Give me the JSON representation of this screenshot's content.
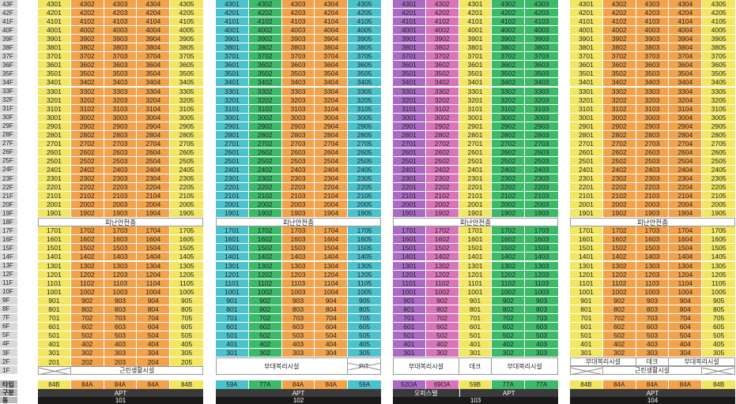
{
  "colors": {
    "yellow": "#f2e663",
    "orange": "#f2a24a",
    "green": "#3cba6a",
    "cyan": "#4cc3cc",
    "purple": "#a96bc4",
    "pink": "#d874b8"
  },
  "floors": [
    "43F",
    "42F",
    "41F",
    "40F",
    "39F",
    "38F",
    "37F",
    "36F",
    "35F",
    "34F",
    "33F",
    "32F",
    "31F",
    "30F",
    "29F",
    "28F",
    "27F",
    "26F",
    "25F",
    "24F",
    "23F",
    "22F",
    "21F",
    "20F",
    "19F",
    "18F",
    "17F",
    "16F",
    "15F",
    "14F",
    "13F",
    "12F",
    "11F",
    "10F",
    "9F",
    "8F",
    "7F",
    "6F",
    "5F",
    "4F",
    "3F",
    "2F",
    "1F"
  ],
  "footer_labels": {
    "type": "타입",
    "gubun": "구분",
    "dong": "동"
  },
  "buildings": [
    {
      "dong": "101",
      "gubun": "APT",
      "refuge": "피난안전층",
      "types": [
        "84B",
        "84A",
        "84A",
        "84A",
        "84B"
      ],
      "colors": [
        "yellow",
        "orange",
        "orange",
        "orange",
        "yellow"
      ],
      "units": [
        "01",
        "02",
        "03",
        "04",
        "05"
      ],
      "bottom": {
        "cells": [
          {
            "label": "",
            "x": true,
            "w": 1
          },
          {
            "label": "근린생활시설",
            "x": false,
            "w": 4
          }
        ]
      }
    },
    {
      "dong": "102",
      "gubun": "APT",
      "refuge": "피난안전층",
      "types": [
        "59A",
        "77A",
        "84A",
        "84A",
        "59A"
      ],
      "colors": [
        "cyan",
        "green",
        "orange",
        "orange",
        "cyan"
      ],
      "units": [
        "01",
        "02",
        "03",
        "04",
        "05"
      ],
      "bottom": {
        "cells": [
          {
            "label": "부대복리시설",
            "x": false,
            "w": 4
          },
          {
            "label": "PIT",
            "x": true,
            "w": 1
          }
        ]
      }
    },
    {
      "dong": "103",
      "gubun": "APT",
      "gubun_left": "오피스텔",
      "refuge": "피난안전층",
      "types": [
        "52OA",
        "69OA",
        "59B",
        "77A",
        "77A"
      ],
      "colors": [
        "purple",
        "pink",
        "yellow",
        "green",
        "green"
      ],
      "units": [
        "01",
        "02",
        "01",
        "02",
        "03"
      ],
      "bottom": {
        "cells": [
          {
            "label": "부대복리시설",
            "x": false,
            "w": 2
          },
          {
            "label": "데크",
            "x": false,
            "w": 1
          },
          {
            "label": "부대복리시설",
            "x": false,
            "w": 2
          }
        ]
      }
    },
    {
      "dong": "104",
      "gubun": "APT",
      "refuge": "피난안전층",
      "types": [
        "84B",
        "84A",
        "84A",
        "84A",
        "84B"
      ],
      "colors": [
        "yellow",
        "orange",
        "orange",
        "orange",
        "yellow"
      ],
      "units": [
        "01",
        "02",
        "03",
        "04",
        "05"
      ],
      "bottom": {
        "cells": [
          {
            "label": "부대복리시설",
            "x": false,
            "w": 2
          },
          {
            "label": "데크",
            "x": false,
            "w": 1
          },
          {
            "label": "부대복리시설",
            "x": false,
            "w": 2
          }
        ],
        "row1f": [
          {
            "label": "",
            "x": true,
            "w": 1
          },
          {
            "label": "근린생활시설",
            "x": false,
            "w": 3
          },
          {
            "label": "",
            "x": true,
            "w": 1
          }
        ]
      }
    }
  ]
}
